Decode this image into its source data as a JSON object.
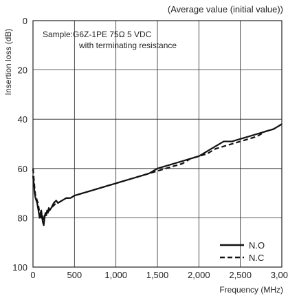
{
  "chart_data": {
    "type": "line",
    "subtitle": "(Average value (initial value))",
    "annotation": [
      "Sample:G6Z-1PE 75Ω 5 VDC",
      "with terminating resistance"
    ],
    "xlabel": "Frequency (MHz)",
    "ylabel": "Insertion loss (dB)",
    "xlim": [
      0,
      3000
    ],
    "ylim": [
      0,
      100
    ],
    "y_inverted": true,
    "grid": true,
    "legend_position": "bottom-right",
    "x_ticks": [
      {
        "value": 0,
        "label": "0"
      },
      {
        "value": 500,
        "label": "500"
      },
      {
        "value": 1000,
        "label": "1,000"
      },
      {
        "value": 1500,
        "label": "1,500"
      },
      {
        "value": 2000,
        "label": "2,000"
      },
      {
        "value": 2500,
        "label": "2,500"
      },
      {
        "value": 3000,
        "label": "3,000"
      }
    ],
    "y_ticks": [
      {
        "value": 0,
        "label": "0"
      },
      {
        "value": 20,
        "label": "20"
      },
      {
        "value": 40,
        "label": "40"
      },
      {
        "value": 60,
        "label": "60"
      },
      {
        "value": 80,
        "label": "80"
      },
      {
        "value": 100,
        "label": "100"
      }
    ],
    "series": [
      {
        "name": "N.O",
        "style": "solid",
        "color": "#111111",
        "points": [
          [
            0,
            63
          ],
          [
            10,
            66
          ],
          [
            20,
            70
          ],
          [
            30,
            72
          ],
          [
            40,
            73
          ],
          [
            50,
            74
          ],
          [
            60,
            76
          ],
          [
            70,
            78
          ],
          [
            80,
            80
          ],
          [
            90,
            78
          ],
          [
            100,
            77
          ],
          [
            110,
            80
          ],
          [
            120,
            82
          ],
          [
            130,
            83
          ],
          [
            140,
            80
          ],
          [
            150,
            78
          ],
          [
            160,
            79
          ],
          [
            170,
            77
          ],
          [
            180,
            78
          ],
          [
            190,
            76
          ],
          [
            200,
            77
          ],
          [
            220,
            76
          ],
          [
            250,
            74
          ],
          [
            280,
            73
          ],
          [
            300,
            74
          ],
          [
            350,
            73
          ],
          [
            400,
            72
          ],
          [
            450,
            72
          ],
          [
            500,
            71
          ],
          [
            600,
            70
          ],
          [
            700,
            69
          ],
          [
            800,
            68
          ],
          [
            900,
            67
          ],
          [
            1000,
            66
          ],
          [
            1100,
            65
          ],
          [
            1200,
            64
          ],
          [
            1300,
            63
          ],
          [
            1400,
            62
          ],
          [
            1500,
            60
          ],
          [
            1600,
            59
          ],
          [
            1700,
            58
          ],
          [
            1800,
            57
          ],
          [
            1900,
            56
          ],
          [
            2000,
            55
          ],
          [
            2100,
            53
          ],
          [
            2200,
            51
          ],
          [
            2300,
            49
          ],
          [
            2400,
            49
          ],
          [
            2500,
            48
          ],
          [
            2600,
            47
          ],
          [
            2700,
            46
          ],
          [
            2800,
            45
          ],
          [
            2900,
            44
          ],
          [
            3000,
            42
          ]
        ]
      },
      {
        "name": "N.C",
        "style": "dashed",
        "color": "#111111",
        "points": [
          [
            0,
            60
          ],
          [
            10,
            64
          ],
          [
            20,
            68
          ],
          [
            30,
            71
          ],
          [
            40,
            72
          ],
          [
            50,
            73
          ],
          [
            60,
            74
          ],
          [
            70,
            76
          ],
          [
            80,
            78
          ],
          [
            90,
            79
          ],
          [
            100,
            80
          ],
          [
            110,
            79
          ],
          [
            120,
            80
          ],
          [
            130,
            81
          ],
          [
            140,
            79
          ],
          [
            150,
            79
          ],
          [
            160,
            78
          ],
          [
            170,
            78
          ],
          [
            180,
            78
          ],
          [
            190,
            77
          ],
          [
            200,
            77
          ],
          [
            220,
            76
          ],
          [
            250,
            75
          ],
          [
            280,
            74
          ],
          [
            300,
            74
          ],
          [
            350,
            73
          ],
          [
            400,
            72
          ],
          [
            450,
            72
          ],
          [
            500,
            71
          ],
          [
            600,
            70
          ],
          [
            700,
            69
          ],
          [
            800,
            68
          ],
          [
            900,
            67
          ],
          [
            1000,
            66
          ],
          [
            1100,
            65
          ],
          [
            1200,
            64
          ],
          [
            1300,
            63
          ],
          [
            1400,
            62
          ],
          [
            1500,
            61
          ],
          [
            1600,
            60
          ],
          [
            1700,
            59
          ],
          [
            1800,
            58
          ],
          [
            1900,
            56
          ],
          [
            2000,
            55
          ],
          [
            2100,
            54
          ],
          [
            2200,
            52
          ],
          [
            2300,
            51
          ],
          [
            2400,
            50
          ],
          [
            2500,
            49
          ],
          [
            2600,
            48
          ],
          [
            2700,
            47
          ],
          [
            2800,
            45
          ],
          [
            2900,
            44
          ],
          [
            3000,
            42
          ]
        ]
      }
    ]
  }
}
